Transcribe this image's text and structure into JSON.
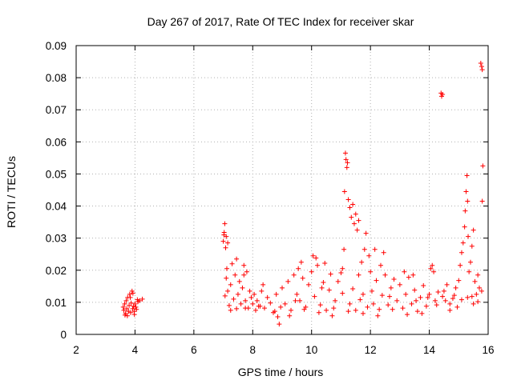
{
  "chart_data": {
    "type": "scatter",
    "title": "Day 267 of 2017, Rate Of TEC Index for receiver skar",
    "xlabel": "GPS time / hours",
    "ylabel": "ROTI / TECUs",
    "xlim": [
      2,
      16
    ],
    "ylim": [
      0,
      0.09
    ],
    "xticks": [
      2,
      4,
      6,
      8,
      10,
      12,
      14,
      16
    ],
    "xtick_labels": [
      "2",
      "4",
      "6",
      "8",
      "10",
      "12",
      "14",
      "16"
    ],
    "yticks": [
      0,
      0.01,
      0.02,
      0.03,
      0.04,
      0.05,
      0.06,
      0.07,
      0.08,
      0.09
    ],
    "ytick_labels": [
      "0",
      "0.01",
      "0.02",
      "0.03",
      "0.04",
      "0.05",
      "0.06",
      "0.07",
      "0.08",
      "0.09"
    ],
    "grid": true,
    "marker": "+",
    "color": "#ff0000",
    "series": [
      {
        "name": "ROTI",
        "points": [
          [
            3.6,
            0.0085
          ],
          [
            3.62,
            0.0075
          ],
          [
            3.65,
            0.0095
          ],
          [
            3.68,
            0.0065
          ],
          [
            3.7,
            0.0105
          ],
          [
            3.72,
            0.008
          ],
          [
            3.75,
            0.0115
          ],
          [
            3.78,
            0.0072
          ],
          [
            3.8,
            0.009
          ],
          [
            3.82,
            0.0125
          ],
          [
            3.85,
            0.0068
          ],
          [
            3.87,
            0.0098
          ],
          [
            3.9,
            0.0135
          ],
          [
            3.92,
            0.008
          ],
          [
            3.95,
            0.0088
          ],
          [
            3.97,
            0.0072
          ],
          [
            4.0,
            0.0095
          ],
          [
            4.05,
            0.0078
          ],
          [
            4.08,
            0.0108
          ],
          [
            4.1,
            0.0102
          ],
          [
            4.15,
            0.0105
          ],
          [
            4.25,
            0.011
          ],
          [
            3.66,
            0.006
          ],
          [
            3.74,
            0.0058
          ],
          [
            3.84,
            0.0115
          ],
          [
            3.93,
            0.0128
          ],
          [
            3.98,
            0.0062
          ],
          [
            4.03,
            0.0085
          ],
          [
            7.0,
            0.029
          ],
          [
            7.02,
            0.031
          ],
          [
            7.05,
            0.0345
          ],
          [
            7.08,
            0.027
          ],
          [
            7.1,
            0.0305
          ],
          [
            7.03,
            0.0318
          ],
          [
            7.06,
            0.012
          ],
          [
            7.1,
            0.0175
          ],
          [
            7.12,
            0.0205
          ],
          [
            7.15,
            0.0135
          ],
          [
            7.2,
            0.009
          ],
          [
            7.25,
            0.0155
          ],
          [
            7.3,
            0.022
          ],
          [
            7.35,
            0.011
          ],
          [
            7.4,
            0.0185
          ],
          [
            7.45,
            0.008
          ],
          [
            7.5,
            0.0125
          ],
          [
            7.55,
            0.0165
          ],
          [
            7.6,
            0.0095
          ],
          [
            7.65,
            0.0145
          ],
          [
            7.7,
            0.0215
          ],
          [
            7.75,
            0.0105
          ],
          [
            7.8,
            0.0195
          ],
          [
            7.85,
            0.0082
          ],
          [
            7.9,
            0.0135
          ],
          [
            7.95,
            0.0115
          ],
          [
            8.0,
            0.0095
          ],
          [
            8.05,
            0.0125
          ],
          [
            8.1,
            0.0075
          ],
          [
            8.15,
            0.0105
          ],
          [
            8.2,
            0.0088
          ],
          [
            8.3,
            0.0135
          ],
          [
            8.4,
            0.0082
          ],
          [
            8.5,
            0.0115
          ],
          [
            8.6,
            0.0098
          ],
          [
            8.7,
            0.0068
          ],
          [
            8.8,
            0.0125
          ],
          [
            8.85,
            0.0055
          ],
          [
            8.9,
            0.0032
          ],
          [
            8.95,
            0.0085
          ],
          [
            9.0,
            0.0145
          ],
          [
            9.1,
            0.0095
          ],
          [
            9.2,
            0.0165
          ],
          [
            9.3,
            0.0075
          ],
          [
            9.4,
            0.0185
          ],
          [
            9.5,
            0.0125
          ],
          [
            9.55,
            0.0205
          ],
          [
            9.6,
            0.0105
          ],
          [
            9.7,
            0.0175
          ],
          [
            9.8,
            0.0085
          ],
          [
            9.9,
            0.0155
          ],
          [
            10.0,
            0.0195
          ],
          [
            10.05,
            0.0245
          ],
          [
            10.1,
            0.0118
          ],
          [
            10.2,
            0.0215
          ],
          [
            10.3,
            0.0092
          ],
          [
            10.4,
            0.0162
          ],
          [
            10.5,
            0.0075
          ],
          [
            10.6,
            0.0138
          ],
          [
            10.7,
            0.0058
          ],
          [
            10.8,
            0.0105
          ],
          [
            10.9,
            0.0165
          ],
          [
            11.0,
            0.0192
          ],
          [
            11.05,
            0.0205
          ],
          [
            11.1,
            0.0265
          ],
          [
            11.12,
            0.0445
          ],
          [
            11.15,
            0.0565
          ],
          [
            11.17,
            0.0545
          ],
          [
            11.2,
            0.052
          ],
          [
            11.22,
            0.0535
          ],
          [
            11.25,
            0.042
          ],
          [
            11.3,
            0.0395
          ],
          [
            11.35,
            0.0365
          ],
          [
            11.4,
            0.0405
          ],
          [
            11.45,
            0.0345
          ],
          [
            11.5,
            0.0375
          ],
          [
            11.55,
            0.0325
          ],
          [
            11.6,
            0.0355
          ],
          [
            11.3,
            0.0095
          ],
          [
            11.4,
            0.0142
          ],
          [
            11.5,
            0.0075
          ],
          [
            11.6,
            0.0185
          ],
          [
            11.7,
            0.0225
          ],
          [
            11.75,
            0.0125
          ],
          [
            11.8,
            0.0265
          ],
          [
            11.85,
            0.0315
          ],
          [
            11.9,
            0.0085
          ],
          [
            11.95,
            0.0245
          ],
          [
            12.0,
            0.0195
          ],
          [
            12.05,
            0.0135
          ],
          [
            12.1,
            0.0095
          ],
          [
            12.2,
            0.0168
          ],
          [
            12.3,
            0.0078
          ],
          [
            12.4,
            0.0122
          ],
          [
            12.5,
            0.0185
          ],
          [
            12.6,
            0.0092
          ],
          [
            12.7,
            0.0145
          ],
          [
            12.8,
            0.0172
          ],
          [
            12.9,
            0.0105
          ],
          [
            13.0,
            0.0155
          ],
          [
            13.1,
            0.0082
          ],
          [
            13.2,
            0.0125
          ],
          [
            13.3,
            0.0178
          ],
          [
            13.4,
            0.0095
          ],
          [
            13.5,
            0.0138
          ],
          [
            13.6,
            0.0072
          ],
          [
            13.7,
            0.0115
          ],
          [
            13.8,
            0.0152
          ],
          [
            13.9,
            0.0088
          ],
          [
            14.0,
            0.0125
          ],
          [
            14.05,
            0.0205
          ],
          [
            14.1,
            0.0215
          ],
          [
            14.2,
            0.0105
          ],
          [
            14.3,
            0.0132
          ],
          [
            14.4,
            0.0752
          ],
          [
            14.42,
            0.0742
          ],
          [
            14.45,
            0.0748
          ],
          [
            14.5,
            0.0135
          ],
          [
            14.6,
            0.0155
          ],
          [
            14.7,
            0.0095
          ],
          [
            14.8,
            0.0112
          ],
          [
            14.9,
            0.0145
          ],
          [
            15.0,
            0.0168
          ],
          [
            15.05,
            0.0215
          ],
          [
            15.1,
            0.0255
          ],
          [
            15.15,
            0.0285
          ],
          [
            15.2,
            0.0335
          ],
          [
            15.22,
            0.0385
          ],
          [
            15.25,
            0.0445
          ],
          [
            15.28,
            0.0495
          ],
          [
            15.3,
            0.0415
          ],
          [
            15.32,
            0.0305
          ],
          [
            15.35,
            0.0195
          ],
          [
            15.4,
            0.0225
          ],
          [
            15.45,
            0.0275
          ],
          [
            15.5,
            0.0325
          ],
          [
            15.55,
            0.0165
          ],
          [
            15.6,
            0.0125
          ],
          [
            15.65,
            0.0185
          ],
          [
            15.7,
            0.0145
          ],
          [
            15.75,
            0.0845
          ],
          [
            15.78,
            0.0835
          ],
          [
            15.8,
            0.0825
          ],
          [
            15.82,
            0.0525
          ],
          [
            15.8,
            0.0415
          ],
          [
            15.78,
            0.0135
          ],
          [
            15.5,
            0.0095
          ],
          [
            15.3,
            0.0115
          ],
          [
            15.1,
            0.0108
          ],
          [
            14.95,
            0.0085
          ],
          [
            14.7,
            0.0075
          ],
          [
            14.45,
            0.0118
          ],
          [
            14.25,
            0.0092
          ],
          [
            13.75,
            0.0065
          ],
          [
            13.25,
            0.0062
          ],
          [
            12.75,
            0.0078
          ],
          [
            12.25,
            0.0058
          ],
          [
            11.75,
            0.0065
          ],
          [
            11.25,
            0.0072
          ],
          [
            10.75,
            0.0082
          ],
          [
            10.25,
            0.0068
          ],
          [
            9.75,
            0.0078
          ],
          [
            9.25,
            0.0058
          ],
          [
            8.75,
            0.0072
          ],
          [
            8.25,
            0.0088
          ],
          [
            7.75,
            0.0082
          ],
          [
            7.25,
            0.0075
          ],
          [
            7.15,
            0.0285
          ],
          [
            7.45,
            0.0235
          ],
          [
            7.7,
            0.0185
          ],
          [
            8.35,
            0.0155
          ],
          [
            9.65,
            0.0225
          ],
          [
            10.15,
            0.0238
          ],
          [
            10.45,
            0.0222
          ],
          [
            12.35,
            0.0215
          ],
          [
            12.15,
            0.0265
          ],
          [
            12.45,
            0.0255
          ],
          [
            13.15,
            0.0195
          ],
          [
            13.45,
            0.0185
          ],
          [
            14.15,
            0.0195
          ],
          [
            9.45,
            0.0105
          ],
          [
            10.35,
            0.0145
          ],
          [
            10.65,
            0.0188
          ],
          [
            11.05,
            0.0128
          ],
          [
            11.65,
            0.0108
          ],
          [
            12.65,
            0.0118
          ],
          [
            13.55,
            0.0105
          ],
          [
            13.95,
            0.0115
          ],
          [
            14.55,
            0.0105
          ],
          [
            14.85,
            0.0122
          ],
          [
            15.45,
            0.0118
          ],
          [
            15.65,
            0.0102
          ]
        ]
      }
    ]
  }
}
